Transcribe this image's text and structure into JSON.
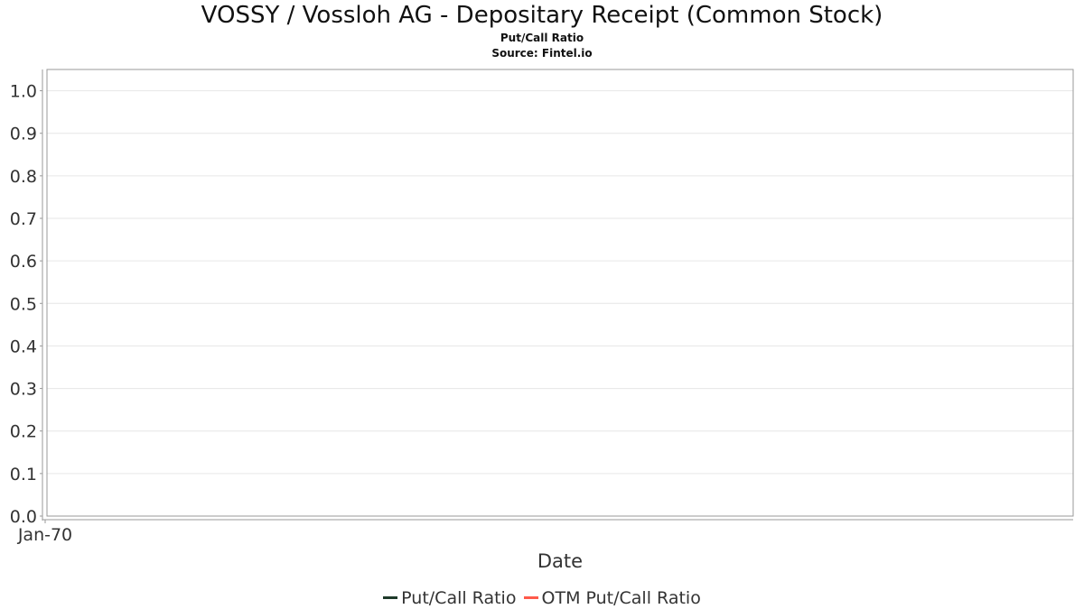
{
  "title": "VOSSY / Vossloh AG - Depositary Receipt (Common Stock)",
  "subtitle": "Put/Call Ratio",
  "source": "Source: Fintel.io",
  "colors": {
    "put_call": "#1e3a2a",
    "otm_put_call": "#ff5a4a",
    "grid": "#e6e6e6",
    "axis": "#999999"
  },
  "chart_data": {
    "type": "line",
    "title": "VOSSY / Vossloh AG - Depositary Receipt (Common Stock)",
    "xlabel": "Date",
    "ylabel": "",
    "x_ticks": [
      "Jan-70"
    ],
    "y_ticks": [
      "0.0",
      "0.1",
      "0.2",
      "0.3",
      "0.4",
      "0.5",
      "0.6",
      "0.7",
      "0.8",
      "0.9",
      "1.0"
    ],
    "ylim": [
      0,
      1.05
    ],
    "grid": true,
    "legend_position": "bottom",
    "series": [
      {
        "name": "Put/Call Ratio",
        "values": []
      },
      {
        "name": "OTM Put/Call Ratio",
        "values": []
      }
    ]
  },
  "legend": [
    {
      "label": "Put/Call Ratio",
      "color": "#1e3a2a"
    },
    {
      "label": "OTM Put/Call Ratio",
      "color": "#ff5a4a"
    }
  ]
}
